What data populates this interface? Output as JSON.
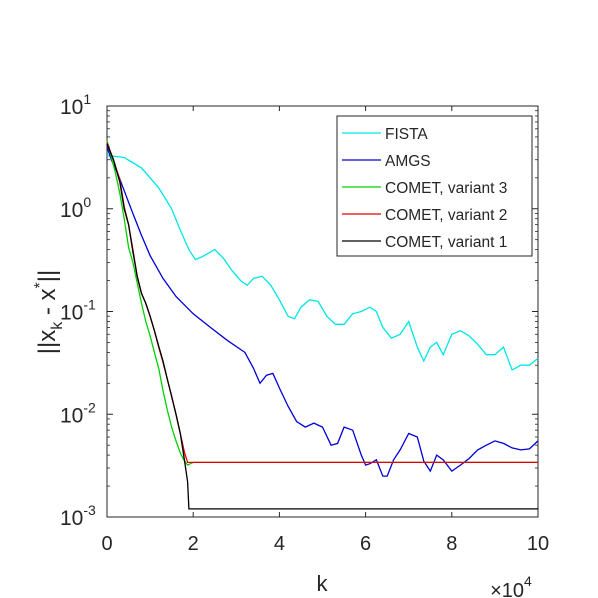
{
  "chart_data": {
    "type": "line",
    "title": "",
    "xlabel": "k",
    "ylabel_parts": {
      "a": "||x",
      "sub": "k",
      "b": " - x",
      "sup": "*",
      "c": "||"
    },
    "x_multiplier": {
      "base": "×10",
      "exp": "4"
    },
    "xlim": [
      0,
      100000
    ],
    "ylim": [
      0.001,
      10
    ],
    "yscale": "log",
    "grid": false,
    "legend_position": "top-right",
    "x_ticks": [
      {
        "value": 0,
        "label": "0"
      },
      {
        "value": 20000,
        "label": "2"
      },
      {
        "value": 40000,
        "label": "4"
      },
      {
        "value": 60000,
        "label": "6"
      },
      {
        "value": 80000,
        "label": "8"
      },
      {
        "value": 100000,
        "label": "10"
      }
    ],
    "y_ticks": [
      {
        "value": 0.001,
        "base": "10",
        "exp": "-3"
      },
      {
        "value": 0.01,
        "base": "10",
        "exp": "-2"
      },
      {
        "value": 0.1,
        "base": "10",
        "exp": "-1"
      },
      {
        "value": 1,
        "base": "10",
        "exp": "0"
      },
      {
        "value": 10,
        "base": "10",
        "exp": "1"
      }
    ],
    "series": [
      {
        "name": "FISTA",
        "color": "#00e6e6",
        "points": [
          [
            0,
            3.3
          ],
          [
            4000,
            3.15
          ],
          [
            8000,
            2.5
          ],
          [
            12000,
            1.6
          ],
          [
            15000,
            1.0
          ],
          [
            17000,
            0.62
          ],
          [
            19000,
            0.4
          ],
          [
            20500,
            0.32
          ],
          [
            22000,
            0.34
          ],
          [
            25000,
            0.4
          ],
          [
            27000,
            0.33
          ],
          [
            29000,
            0.25
          ],
          [
            31000,
            0.2
          ],
          [
            32500,
            0.18
          ],
          [
            34000,
            0.21
          ],
          [
            36000,
            0.22
          ],
          [
            38000,
            0.18
          ],
          [
            40000,
            0.13
          ],
          [
            42000,
            0.09
          ],
          [
            43500,
            0.085
          ],
          [
            45000,
            0.11
          ],
          [
            47000,
            0.13
          ],
          [
            49000,
            0.125
          ],
          [
            51000,
            0.09
          ],
          [
            53000,
            0.075
          ],
          [
            55000,
            0.075
          ],
          [
            57000,
            0.095
          ],
          [
            59000,
            0.1
          ],
          [
            61000,
            0.11
          ],
          [
            62500,
            0.1
          ],
          [
            64000,
            0.07
          ],
          [
            66000,
            0.055
          ],
          [
            68000,
            0.06
          ],
          [
            70000,
            0.08
          ],
          [
            72000,
            0.045
          ],
          [
            73500,
            0.033
          ],
          [
            75000,
            0.045
          ],
          [
            76500,
            0.05
          ],
          [
            78000,
            0.038
          ],
          [
            80000,
            0.06
          ],
          [
            82000,
            0.065
          ],
          [
            84000,
            0.058
          ],
          [
            86000,
            0.048
          ],
          [
            88000,
            0.038
          ],
          [
            90000,
            0.038
          ],
          [
            92000,
            0.045
          ],
          [
            94000,
            0.027
          ],
          [
            96000,
            0.03
          ],
          [
            98000,
            0.03
          ],
          [
            100000,
            0.035
          ]
        ]
      },
      {
        "name": "AMGS",
        "color": "#0000d9",
        "points": [
          [
            0,
            4.0
          ],
          [
            1000,
            3.0
          ],
          [
            2500,
            2.2
          ],
          [
            4000,
            1.5
          ],
          [
            6000,
            0.9
          ],
          [
            8000,
            0.55
          ],
          [
            10000,
            0.35
          ],
          [
            13000,
            0.21
          ],
          [
            16000,
            0.14
          ],
          [
            20000,
            0.095
          ],
          [
            24000,
            0.07
          ],
          [
            28000,
            0.052
          ],
          [
            32000,
            0.04
          ],
          [
            34000,
            0.028
          ],
          [
            35500,
            0.02
          ],
          [
            37000,
            0.024
          ],
          [
            38500,
            0.025
          ],
          [
            40000,
            0.018
          ],
          [
            42000,
            0.012
          ],
          [
            44000,
            0.0085
          ],
          [
            46000,
            0.0075
          ],
          [
            48000,
            0.0082
          ],
          [
            50000,
            0.0075
          ],
          [
            52000,
            0.005
          ],
          [
            53500,
            0.0052
          ],
          [
            55000,
            0.0075
          ],
          [
            57000,
            0.007
          ],
          [
            59000,
            0.004
          ],
          [
            60000,
            0.0032
          ],
          [
            61000,
            0.0033
          ],
          [
            62500,
            0.0036
          ],
          [
            64000,
            0.0025
          ],
          [
            65000,
            0.0025
          ],
          [
            66500,
            0.0036
          ],
          [
            68000,
            0.0045
          ],
          [
            70000,
            0.0065
          ],
          [
            72000,
            0.006
          ],
          [
            73500,
            0.0035
          ],
          [
            75000,
            0.0028
          ],
          [
            76500,
            0.004
          ],
          [
            78000,
            0.0036
          ],
          [
            80000,
            0.0028
          ],
          [
            82000,
            0.0032
          ],
          [
            84000,
            0.0037
          ],
          [
            86000,
            0.0045
          ],
          [
            88000,
            0.005
          ],
          [
            90000,
            0.0055
          ],
          [
            92000,
            0.0052
          ],
          [
            94000,
            0.0047
          ],
          [
            96000,
            0.0045
          ],
          [
            98000,
            0.0046
          ],
          [
            100000,
            0.0055
          ]
        ]
      },
      {
        "name": "COMET, variant 3",
        "color": "#00d200",
        "points": [
          [
            0,
            4.6
          ],
          [
            1000,
            3.2
          ],
          [
            2000,
            2.2
          ],
          [
            3000,
            1.4
          ],
          [
            4000,
            0.8
          ],
          [
            5000,
            0.42
          ],
          [
            6000,
            0.3
          ],
          [
            7000,
            0.19
          ],
          [
            8000,
            0.12
          ],
          [
            9000,
            0.08
          ],
          [
            10000,
            0.058
          ],
          [
            11000,
            0.04
          ],
          [
            12000,
            0.028
          ],
          [
            13000,
            0.017
          ],
          [
            14000,
            0.011
          ],
          [
            15000,
            0.0075
          ],
          [
            16000,
            0.0055
          ],
          [
            17000,
            0.0042
          ],
          [
            18000,
            0.0035
          ],
          [
            18700,
            0.0032
          ],
          [
            20000,
            0.0034
          ],
          [
            100000,
            0.0034
          ]
        ]
      },
      {
        "name": "COMET, variant 2",
        "color": "#e60000",
        "points": [
          [
            0,
            4.4
          ],
          [
            1500,
            3.0
          ],
          [
            3000,
            1.9
          ],
          [
            4000,
            1.05
          ],
          [
            5000,
            0.7
          ],
          [
            6000,
            0.4
          ],
          [
            7000,
            0.22
          ],
          [
            8000,
            0.15
          ],
          [
            9000,
            0.12
          ],
          [
            10000,
            0.09
          ],
          [
            11000,
            0.065
          ],
          [
            12000,
            0.045
          ],
          [
            13000,
            0.032
          ],
          [
            14000,
            0.022
          ],
          [
            15000,
            0.015
          ],
          [
            16000,
            0.01
          ],
          [
            17000,
            0.0065
          ],
          [
            18000,
            0.0042
          ],
          [
            18700,
            0.0034
          ],
          [
            20000,
            0.0034
          ],
          [
            100000,
            0.0034
          ]
        ]
      },
      {
        "name": "COMET, variant 1",
        "color": "#000000",
        "points": [
          [
            0,
            4.3
          ],
          [
            1500,
            3.0
          ],
          [
            3000,
            1.8
          ],
          [
            4000,
            1.0
          ],
          [
            5000,
            0.7
          ],
          [
            6000,
            0.38
          ],
          [
            7000,
            0.22
          ],
          [
            8000,
            0.15
          ],
          [
            9000,
            0.12
          ],
          [
            10000,
            0.09
          ],
          [
            11000,
            0.065
          ],
          [
            12000,
            0.046
          ],
          [
            13000,
            0.033
          ],
          [
            14000,
            0.022
          ],
          [
            15000,
            0.015
          ],
          [
            16000,
            0.01
          ],
          [
            17000,
            0.0065
          ],
          [
            18000,
            0.0035
          ],
          [
            18700,
            0.0022
          ],
          [
            19000,
            0.0012
          ],
          [
            100000,
            0.0012
          ]
        ]
      }
    ]
  }
}
